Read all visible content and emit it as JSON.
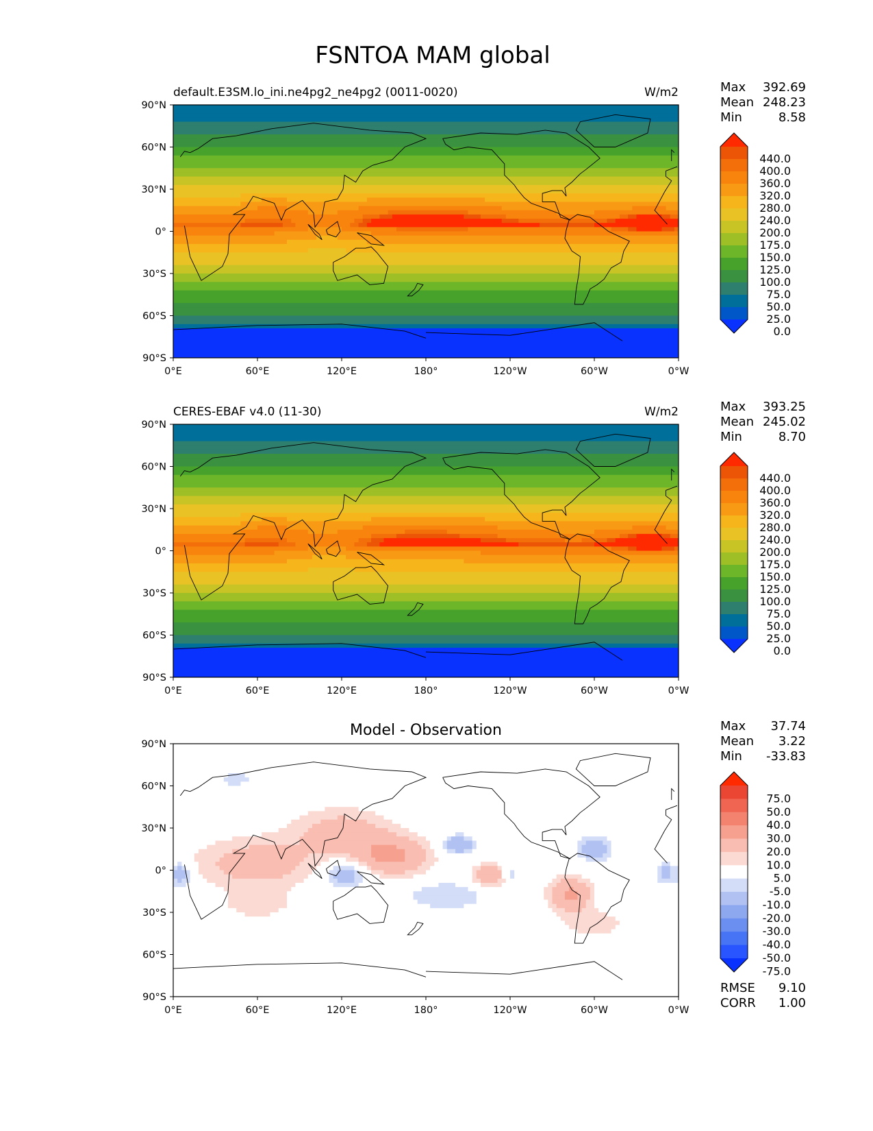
{
  "title": "FSNTOA MAM global",
  "lat_ticks": [
    "90°N",
    "60°N",
    "30°N",
    "0°",
    "30°S",
    "60°S",
    "90°S"
  ],
  "lon_ticks": [
    "0°E",
    "60°E",
    "120°E",
    "180°",
    "120°W",
    "60°W",
    "0°W"
  ],
  "panels": [
    {
      "name": "model",
      "left_title": "default.E3SM.lo_ini.ne4pg2_ne4pg2 (0011-0020)",
      "center_title": "",
      "units": "W/m2",
      "stats": [
        {
          "label": "Max",
          "value": "392.69"
        },
        {
          "label": "Mean",
          "value": "248.23"
        },
        {
          "label": "Min",
          "value": "8.58"
        }
      ],
      "colorbar_levels": [
        "440.0",
        "400.0",
        "360.0",
        "320.0",
        "280.0",
        "240.0",
        "200.0",
        "175.0",
        "150.0",
        "125.0",
        "100.0",
        "75.0",
        "50.0",
        "25.0",
        "0.0"
      ]
    },
    {
      "name": "observation",
      "left_title": "CERES-EBAF v4.0 (11-30)",
      "center_title": "",
      "units": "W/m2",
      "stats": [
        {
          "label": "Max",
          "value": "393.25"
        },
        {
          "label": "Mean",
          "value": "245.02"
        },
        {
          "label": "Min",
          "value": "8.70"
        }
      ],
      "colorbar_levels": [
        "440.0",
        "400.0",
        "360.0",
        "320.0",
        "280.0",
        "240.0",
        "200.0",
        "175.0",
        "150.0",
        "125.0",
        "100.0",
        "75.0",
        "50.0",
        "25.0",
        "0.0"
      ]
    },
    {
      "name": "difference",
      "left_title": "",
      "center_title": "Model - Observation",
      "units": "",
      "stats": [
        {
          "label": "Max",
          "value": "37.74"
        },
        {
          "label": "Mean",
          "value": "3.22"
        },
        {
          "label": "Min",
          "value": "-33.83"
        }
      ],
      "colorbar_levels": [
        "75.0",
        "50.0",
        "40.0",
        "30.0",
        "20.0",
        "10.0",
        "5.0",
        "-5.0",
        "-10.0",
        "-20.0",
        "-30.0",
        "-40.0",
        "-50.0",
        "-75.0"
      ],
      "metrics": [
        {
          "label": "RMSE",
          "value": "9.10"
        },
        {
          "label": "CORR",
          "value": "1.00"
        }
      ]
    }
  ],
  "colors": {
    "abs_scale": [
      "#0a32ff",
      "#0057c8",
      "#006f9a",
      "#2f7f6e",
      "#3a9140",
      "#47a22c",
      "#6eb629",
      "#9ebf25",
      "#c8c426",
      "#e9c225",
      "#f7b51c",
      "#f89a14",
      "#f8840e",
      "#f36f09",
      "#eb5505",
      "#ff2a00"
    ],
    "diff_scale": [
      "#0a32ff",
      "#2855ff",
      "#4773f5",
      "#6a8ff0",
      "#8ea8ef",
      "#b1c2f2",
      "#d3ddf8",
      "#ffffff",
      "#fbdad3",
      "#f9bdb1",
      "#f6a08f",
      "#f3836f",
      "#ef6551",
      "#eb4534",
      "#ff2a00"
    ],
    "coastline": "#000000"
  }
}
